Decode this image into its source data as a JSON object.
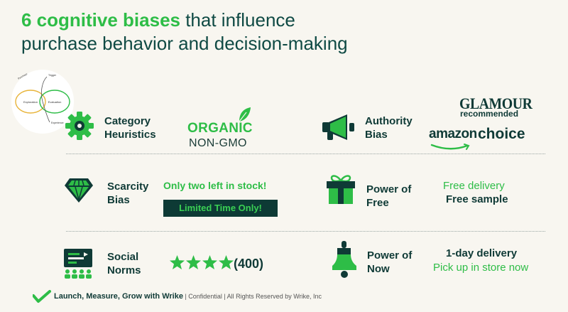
{
  "title": {
    "accent": "6 cognitive biases",
    "rest_line1": " that influence",
    "line2": "purchase behavior and decision-making"
  },
  "diagram": {
    "left_loop": "Exploration",
    "right_loop": "Evaluation",
    "top_label": "Trigger",
    "corner_label": "Purchase",
    "bottom_label": "Experience"
  },
  "biases": {
    "category_heuristics": {
      "label": "Category Heuristics",
      "icon": "gear-icon",
      "example_primary": "ORGANIC",
      "example_secondary": "NON-GMO"
    },
    "authority_bias": {
      "label": "Authority Bias",
      "icon": "megaphone-icon",
      "brand1": "GLAMOUR",
      "brand1_sub": "recommended",
      "brand2_word": "amazon",
      "brand2_choice": "choice"
    },
    "scarcity_bias": {
      "label": "Scarcity Bias",
      "icon": "diamond-icon",
      "example_primary": "Only two left in stock!",
      "example_badge": "Limited Time Only!"
    },
    "power_of_free": {
      "label": "Power of Free",
      "icon": "gift-icon",
      "example_primary": "Free delivery",
      "example_secondary": "Free sample"
    },
    "social_norms": {
      "label": "Social Norms",
      "icon": "audience-icon",
      "stars": 4,
      "review_count": "(400)"
    },
    "power_of_now": {
      "label": "Power of Now",
      "icon": "bell-icon",
      "example_primary": "1-day delivery",
      "example_secondary": "Pick up in store now"
    }
  },
  "footer": {
    "brand": "Launch, Measure, Grow with Wrike",
    "legal": " | Confidential | All Rights Reserved by Wrike, Inc"
  },
  "colors": {
    "accent_green": "#2ebd47",
    "dark_teal": "#0f3a36",
    "background": "#f8f6f0"
  }
}
